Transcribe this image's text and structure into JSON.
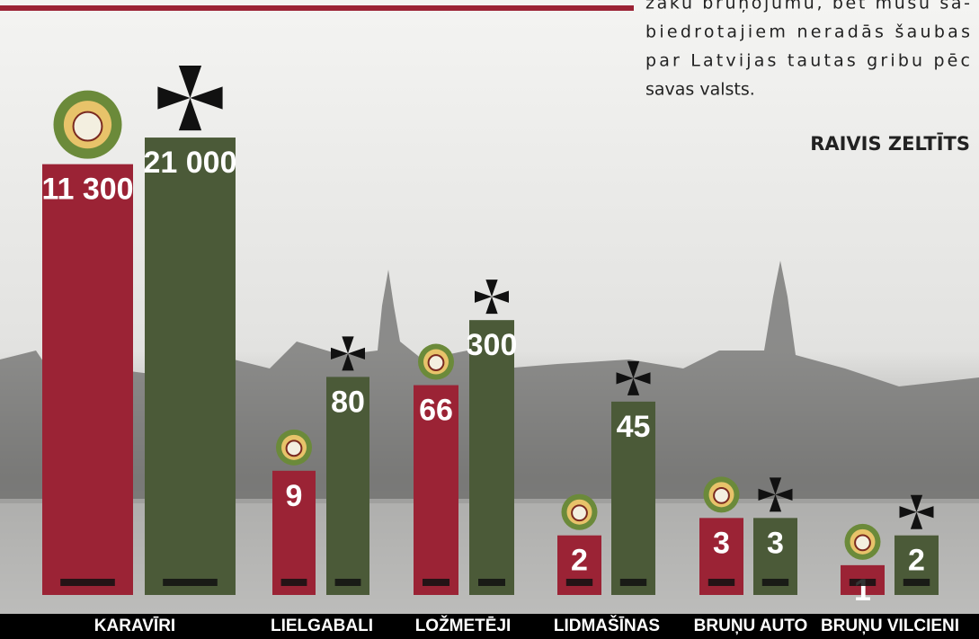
{
  "chart_data": {
    "type": "bar",
    "categories": [
      "KARAVĪRI",
      "LIELGABALI",
      "LOŽMETĒJI",
      "LIDMAŠĪNAS",
      "BRUŅU AUTO",
      "BRUŅU VILCIENI"
    ],
    "series": [
      {
        "color": "#9b2335",
        "values": [
          11300,
          9,
          66,
          2,
          3,
          1
        ],
        "value_labels": [
          "11 300",
          "9",
          "66",
          "2",
          "3",
          "1"
        ]
      },
      {
        "color": "#4b5a38",
        "values": [
          21000,
          80,
          300,
          45,
          3,
          2
        ],
        "value_labels": [
          "21 000",
          "80",
          "300",
          "45",
          "3",
          "2"
        ]
      }
    ],
    "log_scale": true,
    "ylim": [
      0.5,
      30000
    ],
    "text_lines": [
      "zaku bruņojumu, bet mūsu sa-",
      "biedrotajiem neradās šaubas",
      "par Latvijas tautas gribu pēc",
      "savas valsts."
    ],
    "author": "RAIVIS ZELTĪTS"
  }
}
